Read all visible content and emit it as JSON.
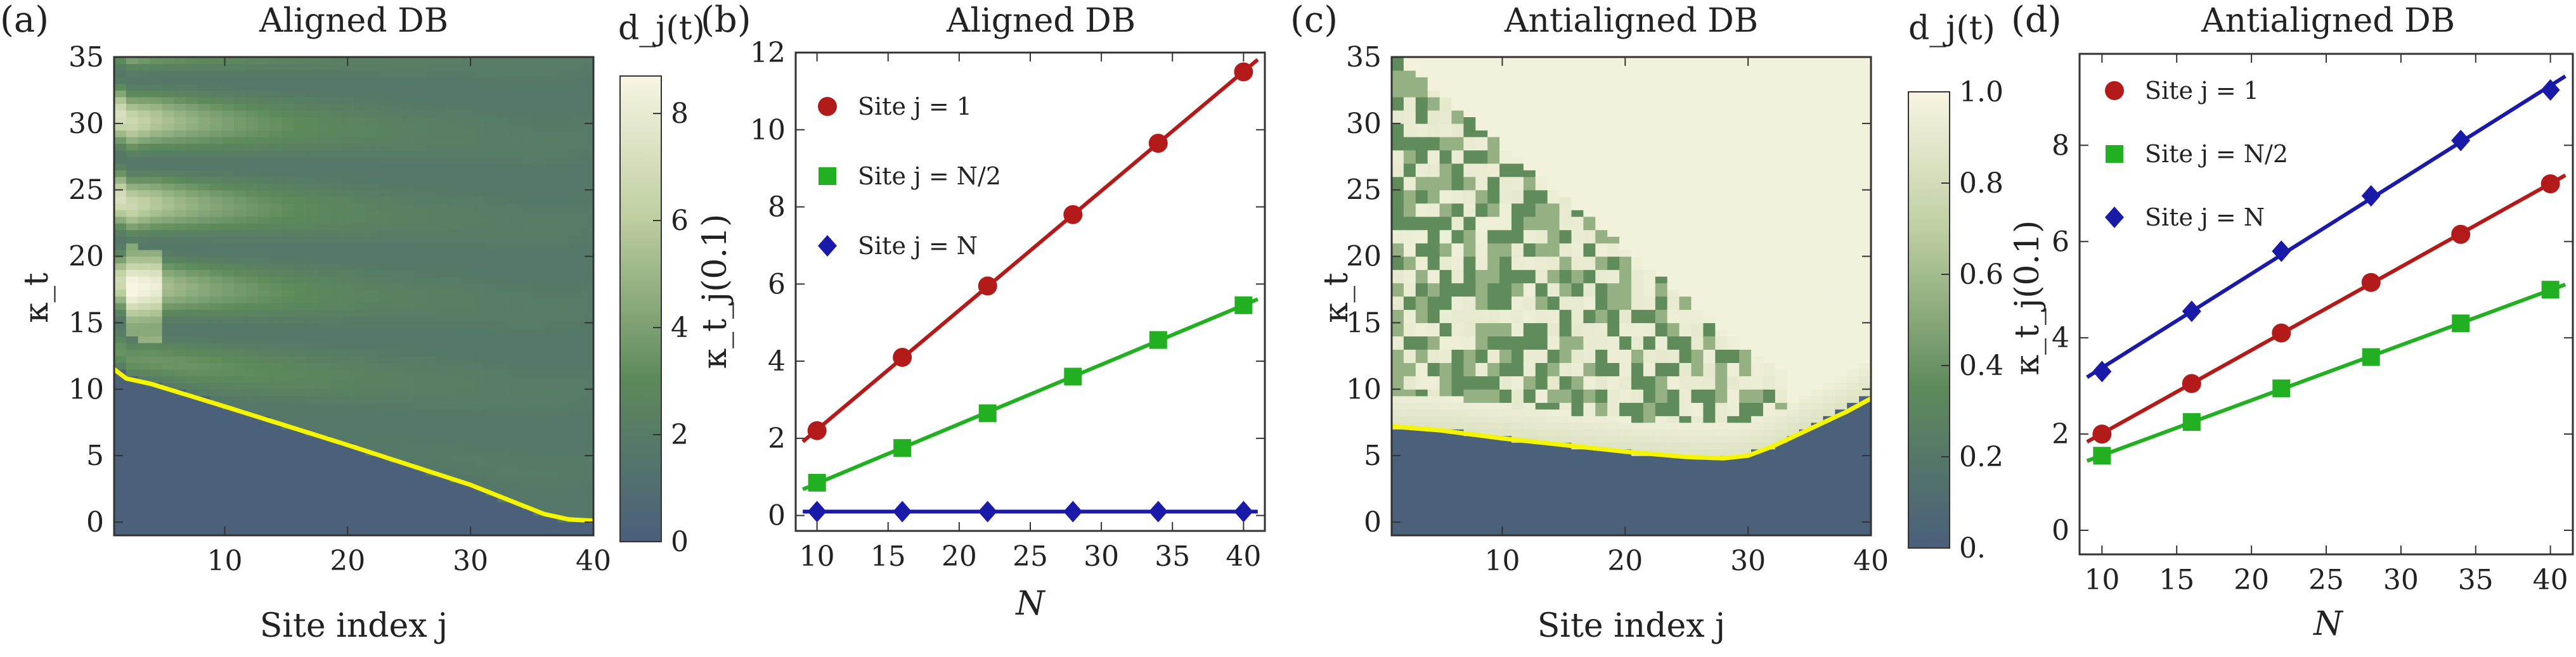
{
  "figure": {
    "panels": [
      {
        "label": "(a)",
        "title": "Aligned DB"
      },
      {
        "label": "(b)",
        "title": "Aligned DB"
      },
      {
        "label": "(c)",
        "title": "Antialigned DB"
      },
      {
        "label": "(d)",
        "title": "Antialigned DB"
      }
    ]
  },
  "colors": {
    "red": "#b31b1b",
    "green": "#22b022",
    "blue": "#1a1aa8",
    "yellow": "#f5f500",
    "map_low": "#4a5f7c",
    "map_mid": "#5d8a5a",
    "map_high": "#f8f5e2"
  },
  "chart_data": [
    {
      "type": "heatmap",
      "panel": "(a)",
      "title": "Aligned DB",
      "xlabel": "Site index j",
      "ylabel": "κ_t",
      "xlim": [
        1,
        40
      ],
      "ylim": [
        -1,
        35
      ],
      "xticks": [
        10,
        20,
        30,
        40
      ],
      "yticks": [
        0,
        5,
        10,
        15,
        20,
        25,
        30,
        35
      ],
      "colorbar": {
        "label": "d_j(t)",
        "range": [
          0,
          8.7
        ],
        "ticks": [
          0,
          2,
          4,
          6,
          8
        ]
      },
      "threshold_curve": {
        "x": [
          1,
          2,
          3,
          4,
          10,
          20,
          30,
          36,
          38,
          40
        ],
        "y": [
          11.5,
          10.8,
          10.6,
          10.4,
          8.7,
          5.8,
          2.8,
          0.6,
          0.2,
          0.1
        ]
      }
    },
    {
      "type": "scatter",
      "panel": "(b)",
      "title": "Aligned DB",
      "xlabel": "N",
      "ylabel": "κ_t_j(0.1)",
      "xlim": [
        8.5,
        41.5
      ],
      "ylim": [
        -0.4,
        12
      ],
      "xticks": [
        10,
        15,
        20,
        25,
        30,
        35,
        40
      ],
      "yticks": [
        0,
        2,
        4,
        6,
        8,
        10,
        12
      ],
      "legend_position": "top-left",
      "categories": [
        10,
        16,
        22,
        28,
        34,
        40
      ],
      "series": [
        {
          "name": "Site j = 1",
          "marker": "circle",
          "values": [
            2.2,
            4.1,
            5.95,
            7.8,
            9.65,
            11.5
          ]
        },
        {
          "name": "Site j = N/2",
          "marker": "square",
          "values": [
            0.85,
            1.75,
            2.65,
            3.6,
            4.55,
            5.45
          ]
        },
        {
          "name": "Site j = N",
          "marker": "diamond",
          "values": [
            0.1,
            0.1,
            0.1,
            0.1,
            0.1,
            0.1
          ]
        }
      ]
    },
    {
      "type": "heatmap",
      "panel": "(c)",
      "title": "Antialigned DB",
      "xlabel": "Site index j",
      "ylabel": "κ_t",
      "xlim": [
        1,
        40
      ],
      "ylim": [
        -1,
        35
      ],
      "xticks": [
        10,
        20,
        30,
        40
      ],
      "yticks": [
        0,
        5,
        10,
        15,
        20,
        25,
        30,
        35
      ],
      "colorbar": {
        "label": "d_j(t)",
        "range": [
          0,
          1.0
        ],
        "ticks": [
          "0.",
          "0.2",
          "0.4",
          "0.6",
          "0.8",
          "1.0"
        ]
      },
      "threshold_curve": {
        "x": [
          1,
          5,
          10,
          15,
          20,
          25,
          28,
          30,
          32,
          35,
          38,
          40
        ],
        "y": [
          7.2,
          6.9,
          6.3,
          5.8,
          5.3,
          4.9,
          4.8,
          5.0,
          5.7,
          7.0,
          8.3,
          9.3
        ]
      }
    },
    {
      "type": "scatter",
      "panel": "(d)",
      "title": "Antialigned DB",
      "xlabel": "N",
      "ylabel": "κ_t_j(0.1)",
      "xlim": [
        8.5,
        41.5
      ],
      "ylim": [
        -0.5,
        9.9
      ],
      "xticks": [
        10,
        15,
        20,
        25,
        30,
        35,
        40
      ],
      "yticks": [
        0,
        2,
        4,
        6,
        8
      ],
      "legend_position": "top-left",
      "categories": [
        10,
        16,
        22,
        28,
        34,
        40
      ],
      "series": [
        {
          "name": "Site j = 1",
          "marker": "circle",
          "values": [
            2.0,
            3.05,
            4.1,
            5.15,
            6.15,
            7.2
          ]
        },
        {
          "name": "Site j = N/2",
          "marker": "square",
          "values": [
            1.55,
            2.25,
            2.95,
            3.6,
            4.3,
            5.0
          ]
        },
        {
          "name": "Site j = N",
          "marker": "diamond",
          "values": [
            3.3,
            4.55,
            5.8,
            6.95,
            8.1,
            9.15
          ]
        }
      ]
    }
  ]
}
